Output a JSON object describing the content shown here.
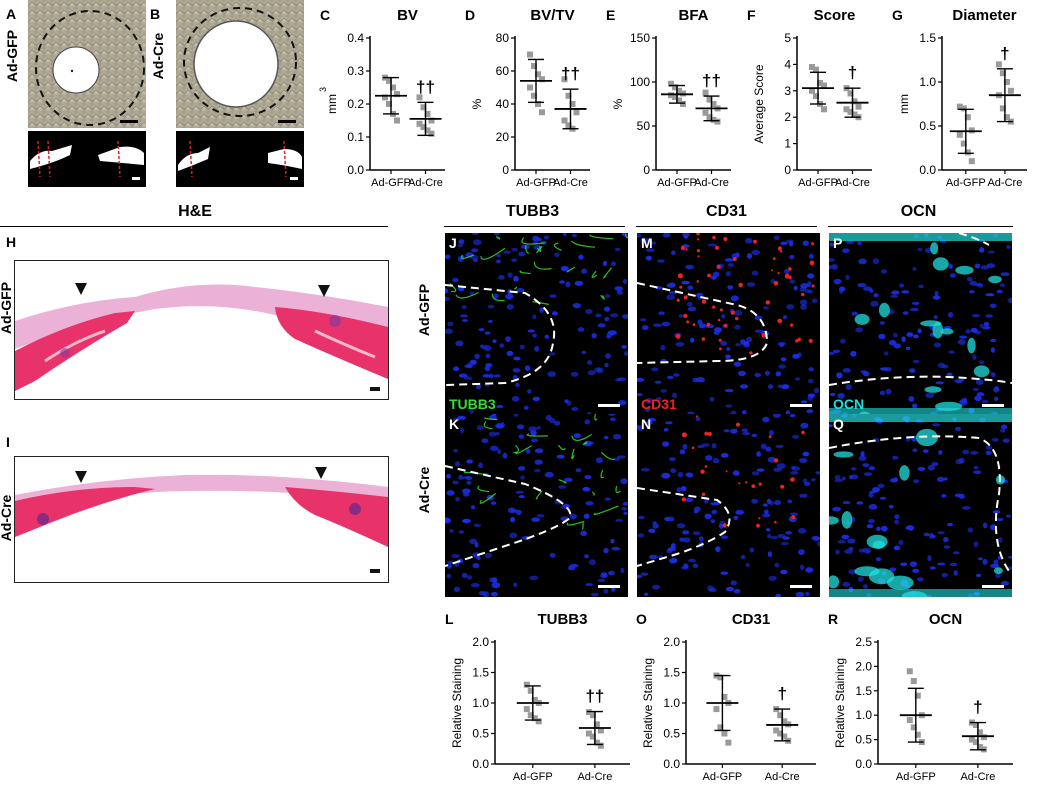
{
  "labels": {
    "A": "A",
    "B": "B",
    "H": "H",
    "I": "I",
    "J": "J",
    "K": "K",
    "M": "M",
    "N": "N",
    "P": "P",
    "Q": "Q"
  },
  "row_labels": {
    "gfp": "Ad-GFP",
    "cre": "Ad-Cre"
  },
  "section_titles": {
    "he": "H&E",
    "tubb3": "TUBB3",
    "cd31": "CD31",
    "ocn": "OCN"
  },
  "stain_labels": {
    "tubb3": "TUBB3",
    "cd31": "CD31",
    "ocn": "OCN"
  },
  "colors": {
    "tubb3": "#33dd33",
    "cd31": "#ee2222",
    "ocn": "#22dddd",
    "nuclei": "#1a2ee0",
    "he_pink": "#e8336a",
    "points": "#9a9a9a"
  },
  "chart_data": [
    {
      "letter": "C",
      "type": "scatter",
      "title": "BV",
      "ylabel": "mm",
      "ylabel_sup": "3",
      "ylim": [
        0,
        0.4
      ],
      "yticks": [
        "0.0",
        "0.1",
        "0.2",
        "0.3",
        "0.4"
      ],
      "categories": [
        "Ad-GFP",
        "Ad-Cre"
      ],
      "means": [
        0.225,
        0.155
      ],
      "sds": [
        0.055,
        0.05
      ],
      "sig": "††",
      "points": [
        [
          0.28,
          0.27,
          0.25,
          0.23,
          0.22,
          0.2,
          0.17,
          0.15
        ],
        [
          0.22,
          0.19,
          0.17,
          0.15,
          0.14,
          0.13,
          0.12,
          0.11
        ]
      ]
    },
    {
      "letter": "D",
      "type": "scatter",
      "title": "BV/TV",
      "ylabel": "%",
      "ylim": [
        0,
        80
      ],
      "yticks": [
        "0",
        "20",
        "40",
        "60",
        "80"
      ],
      "categories": [
        "Ad-GFP",
        "Ad-Cre"
      ],
      "means": [
        54,
        37
      ],
      "sds": [
        13,
        12
      ],
      "sig": "††",
      "points": [
        [
          70,
          63,
          58,
          55,
          50,
          45,
          40,
          35
        ],
        [
          55,
          45,
          40,
          35,
          30,
          27,
          25,
          35
        ]
      ]
    },
    {
      "letter": "E",
      "type": "scatter",
      "title": "BFA",
      "ylabel": "%",
      "ylim": [
        0,
        150
      ],
      "yticks": [
        "0",
        "50",
        "100",
        "150"
      ],
      "categories": [
        "Ad-GFP",
        "Ad-Cre"
      ],
      "means": [
        86,
        70
      ],
      "sds": [
        10,
        14
      ],
      "sig": "††",
      "points": [
        [
          98,
          94,
          90,
          87,
          85,
          83,
          79,
          75
        ],
        [
          88,
          80,
          75,
          70,
          65,
          60,
          57,
          55
        ]
      ]
    },
    {
      "letter": "F",
      "type": "scatter",
      "title": "Score",
      "ylabel": "Average Score",
      "ylim": [
        0,
        5
      ],
      "yticks": [
        "0",
        "1",
        "2",
        "3",
        "4",
        "5"
      ],
      "categories": [
        "Ad-GFP",
        "Ad-Cre"
      ],
      "means": [
        3.1,
        2.55
      ],
      "sds": [
        0.6,
        0.55
      ],
      "sig": "†",
      "points": [
        [
          3.9,
          3.8,
          3.3,
          3.2,
          3.0,
          2.8,
          2.5,
          2.3
        ],
        [
          3.1,
          2.9,
          2.6,
          2.4,
          2.3,
          2.2,
          2.1,
          2.0
        ]
      ]
    },
    {
      "letter": "G",
      "type": "scatter",
      "title": "Diameter",
      "ylabel": "mm",
      "ylim": [
        0,
        1.5
      ],
      "yticks": [
        "0.0",
        "0.5",
        "1.0",
        "1.5"
      ],
      "categories": [
        "Ad-GFP",
        "Ad-Cre"
      ],
      "means": [
        0.44,
        0.85
      ],
      "sds": [
        0.25,
        0.3
      ],
      "sig": "†",
      "points": [
        [
          0.72,
          0.7,
          0.6,
          0.45,
          0.4,
          0.3,
          0.2,
          0.1
        ],
        [
          1.2,
          1.1,
          1.0,
          0.9,
          0.85,
          0.7,
          0.6,
          0.55
        ]
      ]
    },
    {
      "letter": "L",
      "type": "scatter",
      "title": "TUBB3",
      "ylabel": "Relative Staining",
      "ylim": [
        0,
        2.0
      ],
      "yticks": [
        "0.0",
        "0.5",
        "1.0",
        "1.5",
        "2.0"
      ],
      "categories": [
        "Ad-GFP",
        "Ad-Cre"
      ],
      "means": [
        1.0,
        0.59
      ],
      "sds": [
        0.28,
        0.27
      ],
      "sig": "††",
      "points": [
        [
          1.3,
          1.2,
          1.05,
          1.0,
          0.9,
          0.8,
          0.75,
          0.7
        ],
        [
          0.85,
          0.8,
          0.65,
          0.55,
          0.5,
          0.45,
          0.35,
          0.3
        ]
      ]
    },
    {
      "letter": "O",
      "type": "scatter",
      "title": "CD31",
      "ylabel": "Relative Staining",
      "ylim": [
        0,
        2.0
      ],
      "yticks": [
        "0.0",
        "0.5",
        "1.0",
        "1.5",
        "2.0"
      ],
      "categories": [
        "Ad-GFP",
        "Ad-Cre"
      ],
      "means": [
        1.0,
        0.64
      ],
      "sds": [
        0.45,
        0.26
      ],
      "sig": "†",
      "points": [
        [
          1.45,
          1.42,
          1.1,
          1.0,
          0.9,
          0.6,
          0.5,
          0.35
        ],
        [
          0.9,
          0.8,
          0.7,
          0.65,
          0.55,
          0.5,
          0.45,
          0.38
        ]
      ]
    },
    {
      "letter": "R",
      "type": "scatter",
      "title": "OCN",
      "ylabel": "Relative Staining",
      "ylim": [
        0,
        2.5
      ],
      "yticks": [
        "0.0",
        "0.5",
        "1.0",
        "1.5",
        "2.0",
        "2.5"
      ],
      "categories": [
        "Ad-GFP",
        "Ad-Cre"
      ],
      "means": [
        1.0,
        0.57
      ],
      "sds": [
        0.55,
        0.28
      ],
      "sig": "†",
      "points": [
        [
          1.9,
          1.7,
          1.4,
          1.0,
          0.9,
          0.75,
          0.6,
          0.45
        ],
        [
          0.85,
          0.8,
          0.65,
          0.55,
          0.5,
          0.45,
          0.35,
          0.3
        ]
      ]
    }
  ]
}
